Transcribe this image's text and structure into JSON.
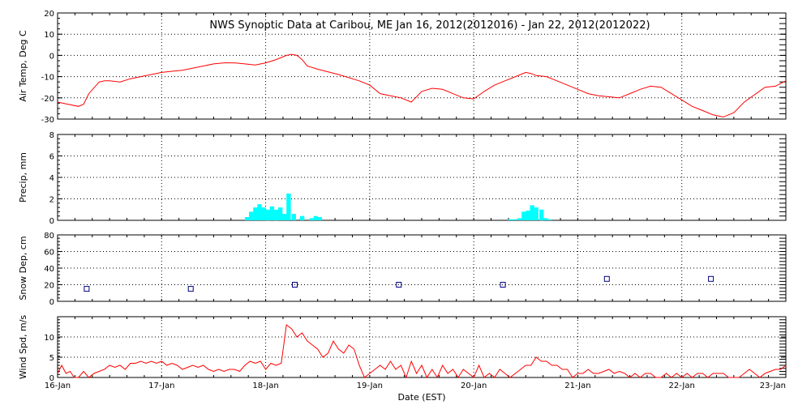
{
  "chart_data": {
    "title": "NWS Synoptic Data at Caribou, ME   Jan 16, 2012(2012016) - Jan 22, 2012(2012022)",
    "xlabel": "Date (EST)",
    "x_ticks": [
      "16-Jan",
      "17-Jan",
      "18-Jan",
      "19-Jan",
      "20-Jan",
      "21-Jan",
      "22-Jan",
      "23-Jan"
    ],
    "x_range_days": [
      0,
      7
    ],
    "grid": "dotted",
    "colors": {
      "temp_line": "#ff0000",
      "precip_bar": "#00ffff",
      "snow_marker": "#000080",
      "wind_line": "#ff0000"
    },
    "panels": [
      {
        "type": "line",
        "ylabel": "Air Temp, Deg C",
        "ylim": [
          -30,
          20
        ],
        "yticks": [
          20,
          10,
          0,
          -10,
          -20,
          -30
        ],
        "x": [
          0,
          0.1,
          0.2,
          0.25,
          0.3,
          0.4,
          0.45,
          0.5,
          0.6,
          0.7,
          0.8,
          1.0,
          1.1,
          1.2,
          1.3,
          1.4,
          1.5,
          1.6,
          1.7,
          1.8,
          1.9,
          2.0,
          2.1,
          2.2,
          2.25,
          2.3,
          2.35,
          2.4,
          2.5,
          2.7,
          2.9,
          3.0,
          3.1,
          3.2,
          3.3,
          3.4,
          3.5,
          3.6,
          3.7,
          3.8,
          3.9,
          4.0,
          4.1,
          4.2,
          4.3,
          4.4,
          4.5,
          4.55,
          4.6,
          4.7,
          4.8,
          4.9,
          5.0,
          5.1,
          5.2,
          5.3,
          5.4,
          5.5,
          5.6,
          5.7,
          5.8,
          5.9,
          6.0,
          6.1,
          6.2,
          6.25,
          6.3,
          6.4,
          6.5,
          6.6,
          6.8,
          6.9,
          7.0
        ],
        "values": [
          -22,
          -23,
          -24,
          -23,
          -18,
          -12.5,
          -12,
          -12,
          -12.5,
          -11,
          -10,
          -8,
          -7.5,
          -7,
          -6,
          -5,
          -4,
          -3.5,
          -3.5,
          -4,
          -4.5,
          -3.5,
          -2,
          0,
          0.5,
          0,
          -2,
          -5,
          -6.5,
          -9,
          -12,
          -14,
          -18,
          -19,
          -20,
          -22,
          -17,
          -15.5,
          -16,
          -18,
          -20,
          -20.5,
          -17,
          -14,
          -12,
          -10,
          -8,
          -8.5,
          -9.5,
          -10,
          -12,
          -14,
          -16,
          -18,
          -19,
          -19.5,
          -20,
          -18,
          -16,
          -14.5,
          -15,
          -18,
          -21,
          -24,
          -26,
          -27,
          -28,
          -29,
          -27,
          -22,
          -15,
          -14.5,
          -12
        ]
      },
      {
        "type": "bar",
        "ylabel": "Precip, mm",
        "ylim": [
          0,
          8
        ],
        "yticks": [
          8,
          6,
          4,
          2,
          0
        ],
        "bar_width_days": 0.042,
        "x": [
          1.8,
          1.84,
          1.88,
          1.92,
          1.96,
          2.0,
          2.04,
          2.08,
          2.12,
          2.16,
          2.2,
          2.25,
          2.33,
          2.42,
          2.46,
          2.5,
          4.33,
          4.37,
          4.42,
          4.46,
          4.5,
          4.54,
          4.58,
          4.63,
          4.67,
          4.71
        ],
        "values": [
          0.3,
          0.8,
          1.2,
          1.5,
          1.2,
          1.0,
          1.3,
          1.0,
          1.2,
          0.6,
          2.5,
          0.6,
          0.4,
          0.2,
          0.4,
          0.3,
          0.1,
          0.1,
          0.2,
          0.8,
          0.9,
          1.4,
          1.2,
          1.0,
          0.2,
          0.1
        ]
      },
      {
        "type": "scatter",
        "ylabel": "Snow Dep, cm",
        "ylim": [
          0,
          80
        ],
        "yticks": [
          80,
          60,
          40,
          20,
          0
        ],
        "x": [
          0.28,
          1.28,
          2.28,
          3.28,
          4.28,
          5.28,
          6.28
        ],
        "values": [
          15,
          15,
          20,
          20,
          20,
          27,
          27
        ]
      },
      {
        "type": "line",
        "ylabel": "Wind Spd, m/s",
        "ylim": [
          0,
          15
        ],
        "yticks": [
          10,
          5,
          0
        ],
        "x": [
          0,
          0.04,
          0.08,
          0.12,
          0.16,
          0.2,
          0.25,
          0.3,
          0.35,
          0.4,
          0.45,
          0.5,
          0.55,
          0.6,
          0.65,
          0.7,
          0.75,
          0.8,
          0.85,
          0.9,
          0.95,
          1.0,
          1.05,
          1.1,
          1.15,
          1.2,
          1.25,
          1.3,
          1.35,
          1.4,
          1.45,
          1.5,
          1.55,
          1.6,
          1.65,
          1.7,
          1.75,
          1.8,
          1.85,
          1.9,
          1.95,
          2.0,
          2.05,
          2.1,
          2.15,
          2.2,
          2.25,
          2.3,
          2.35,
          2.4,
          2.45,
          2.5,
          2.55,
          2.6,
          2.65,
          2.7,
          2.75,
          2.8,
          2.85,
          2.9,
          2.95,
          3.0,
          3.05,
          3.1,
          3.15,
          3.2,
          3.25,
          3.3,
          3.35,
          3.4,
          3.45,
          3.5,
          3.55,
          3.6,
          3.65,
          3.7,
          3.75,
          3.8,
          3.85,
          3.9,
          3.95,
          4.0,
          4.05,
          4.1,
          4.15,
          4.2,
          4.25,
          4.3,
          4.35,
          4.4,
          4.45,
          4.5,
          4.55,
          4.6,
          4.65,
          4.7,
          4.75,
          4.8,
          4.85,
          4.9,
          4.95,
          5.0,
          5.05,
          5.1,
          5.15,
          5.2,
          5.25,
          5.3,
          5.35,
          5.4,
          5.45,
          5.5,
          5.55,
          5.6,
          5.65,
          5.7,
          5.75,
          5.8,
          5.85,
          5.9,
          5.95,
          6.0,
          6.05,
          6.1,
          6.15,
          6.2,
          6.25,
          6.3,
          6.35,
          6.4,
          6.45,
          6.5,
          6.55,
          6.6,
          6.65,
          6.7,
          6.75,
          6.8,
          6.85,
          6.9,
          6.95,
          7.0
        ],
        "values": [
          1,
          3,
          1,
          1.5,
          0,
          0,
          1.5,
          0,
          1,
          1.5,
          2,
          3,
          2.5,
          3,
          2,
          3.5,
          3.5,
          4,
          3.5,
          4,
          3.5,
          4,
          3,
          3.5,
          3,
          2,
          2.5,
          3,
          2.5,
          3,
          2,
          1.5,
          2,
          1.5,
          2,
          2,
          1.5,
          3,
          4,
          3.5,
          4,
          2,
          3.5,
          3,
          3.5,
          13,
          12,
          10,
          11,
          9,
          8,
          7,
          5,
          6,
          9,
          7,
          6,
          8,
          7,
          3,
          0,
          1,
          2,
          3,
          2,
          4,
          2,
          3,
          0,
          4,
          1,
          3,
          0,
          2,
          0,
          3,
          1,
          2,
          0,
          2,
          1,
          0,
          3,
          0,
          1,
          0,
          2,
          1,
          0,
          1,
          2,
          3,
          3,
          5,
          4,
          4,
          3,
          3,
          2,
          2,
          0,
          1,
          1,
          2,
          1,
          1,
          1.5,
          2,
          1,
          1.5,
          1,
          0,
          1,
          0,
          1,
          1,
          0,
          0,
          1,
          0,
          1,
          0,
          1,
          0,
          1,
          1,
          0,
          1,
          1,
          1,
          0,
          0,
          0,
          1,
          2,
          1,
          0,
          1,
          1.5,
          2,
          2,
          3
        ]
      }
    ]
  }
}
